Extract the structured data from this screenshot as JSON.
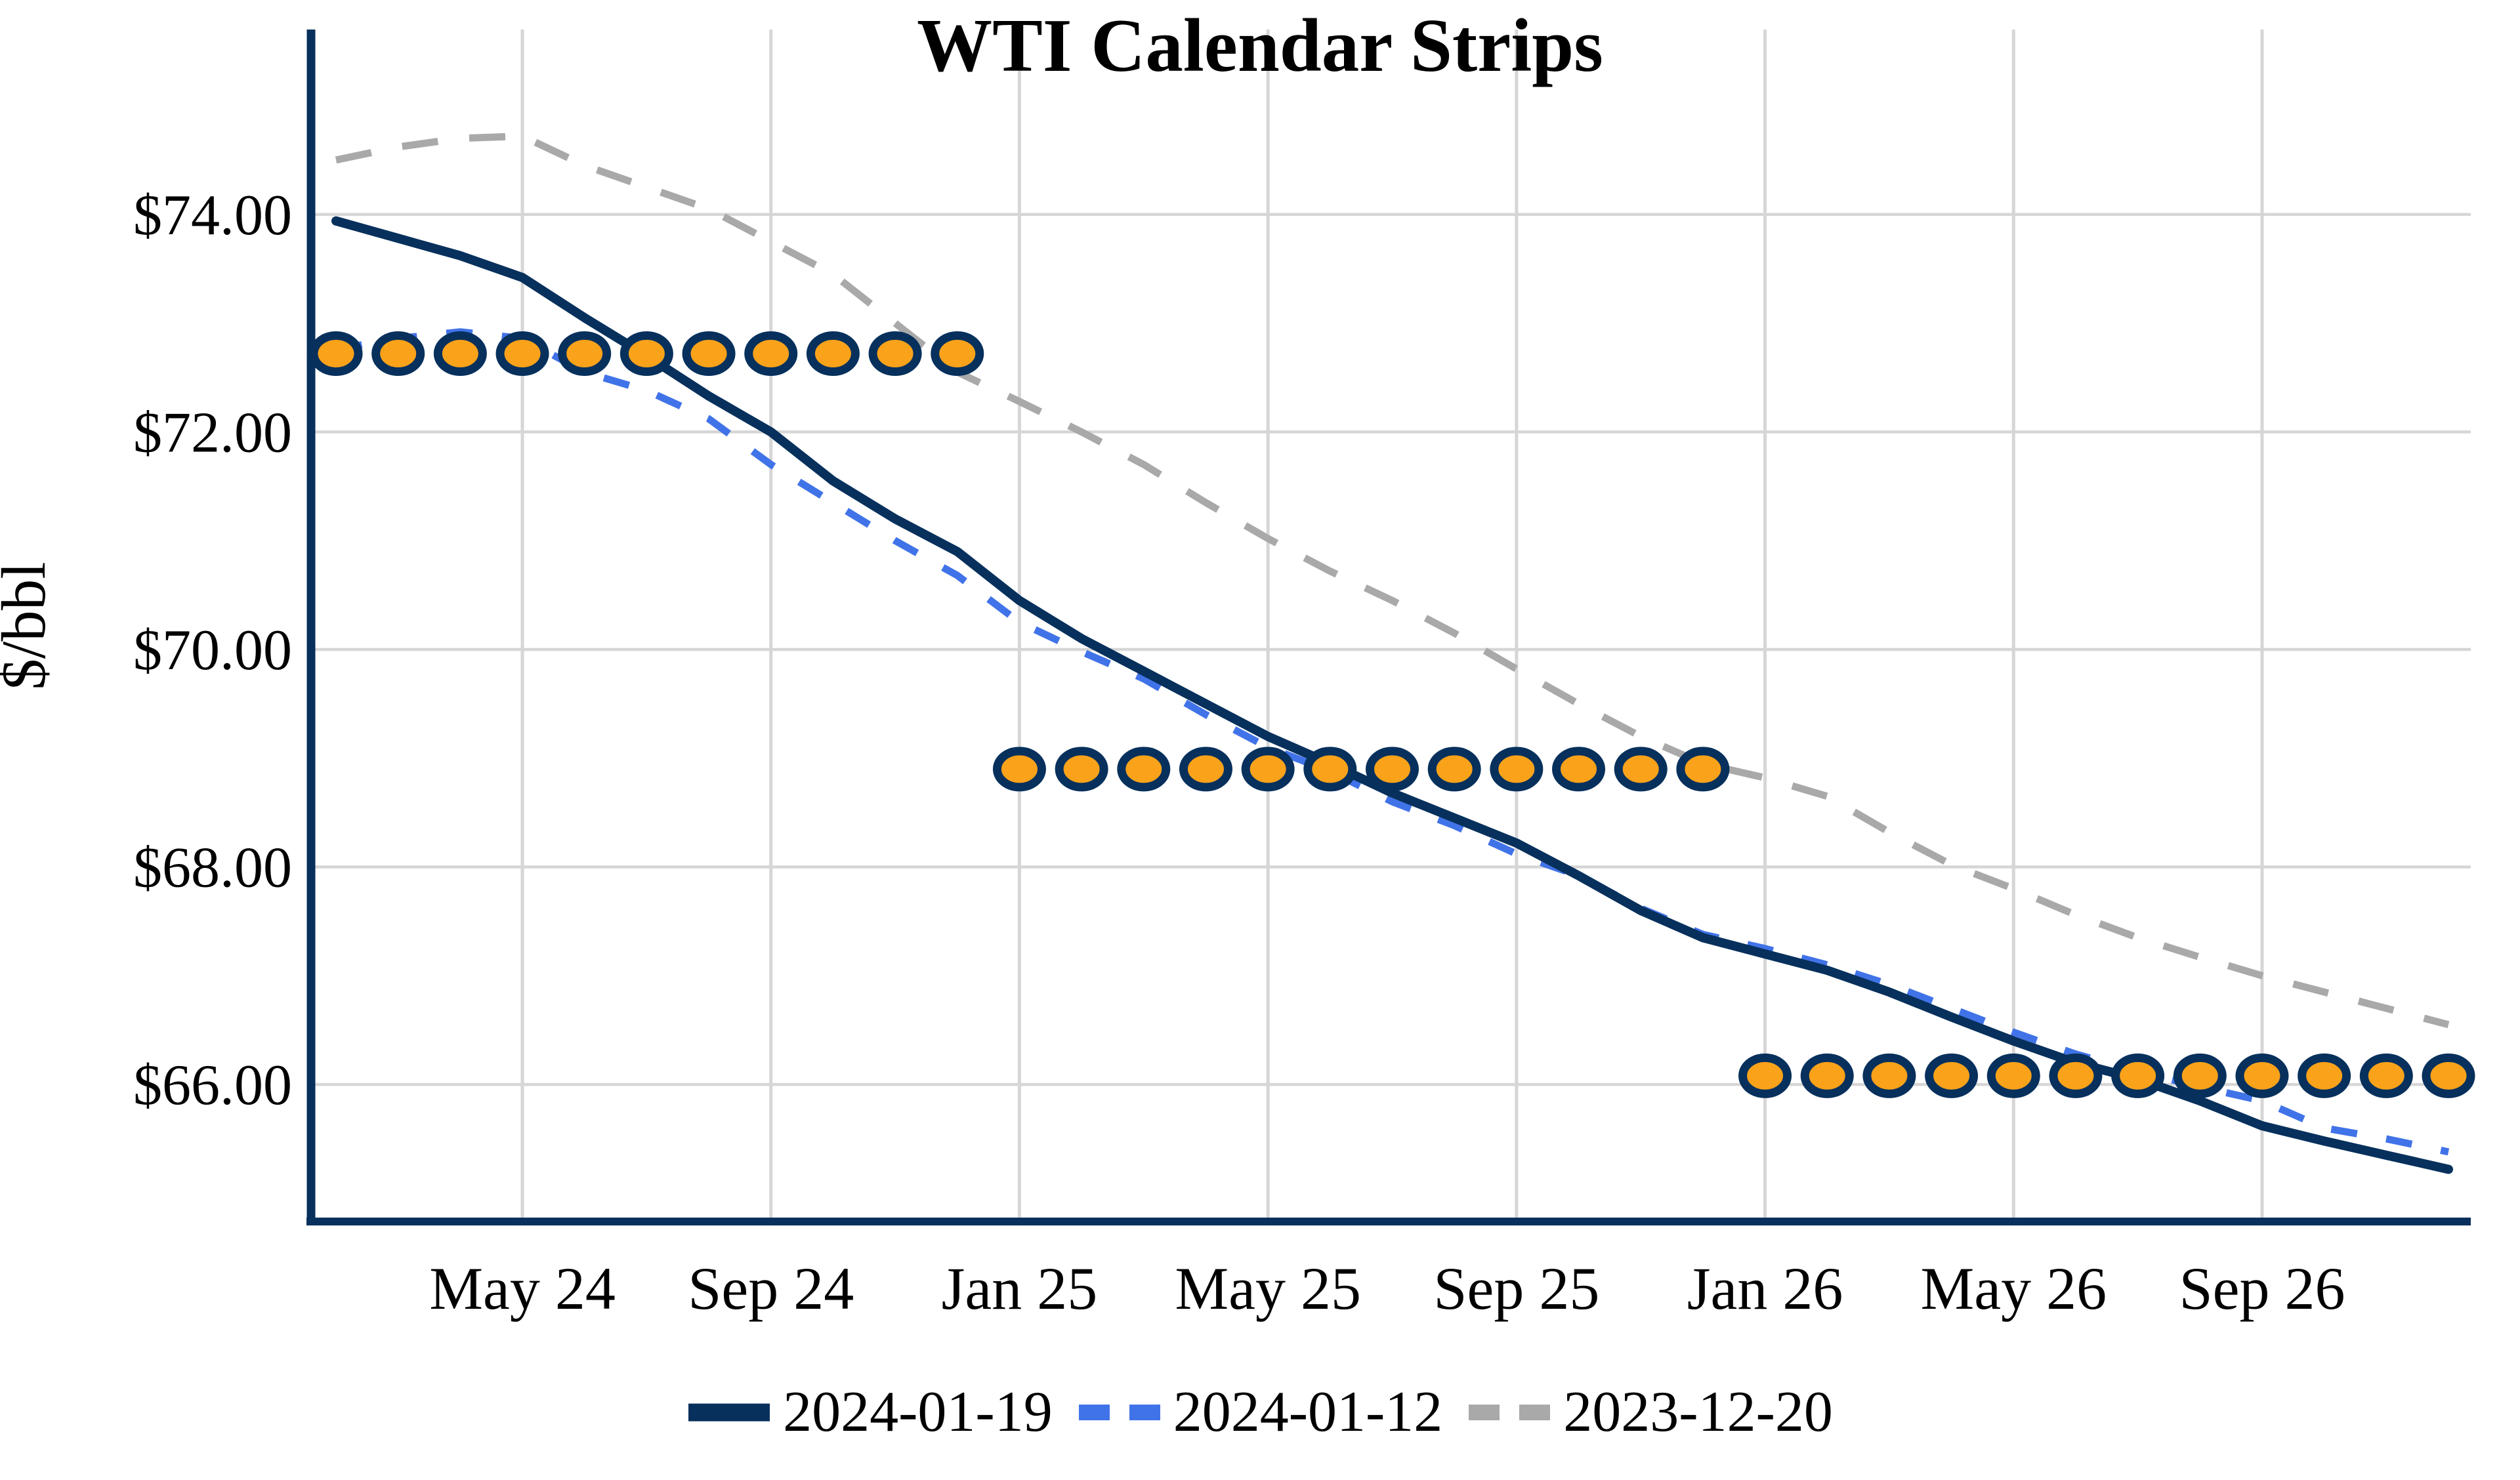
{
  "page": {
    "background": "#FFFFFF",
    "text_color": "#000000"
  },
  "chart_data": {
    "type": "line",
    "title": "WTI Calendar Strips",
    "ylabel": "$/bbl",
    "xlabel": "",
    "grid": true,
    "legend_position": "bottom",
    "ylim": [
      64.74,
      75.7
    ],
    "months": [
      "Feb 24",
      "Mar 24",
      "Apr 24",
      "May 24",
      "Jun 24",
      "Jul 24",
      "Aug 24",
      "Sep 24",
      "Oct 24",
      "Nov 24",
      "Dec 24",
      "Jan 25",
      "Feb 25",
      "Mar 25",
      "Apr 25",
      "May 25",
      "Jun 25",
      "Jul 25",
      "Aug 25",
      "Sep 25",
      "Oct 25",
      "Nov 25",
      "Dec 25",
      "Jan 26",
      "Feb 26",
      "Mar 26",
      "Apr 26",
      "May 26",
      "Jun 26",
      "Jul 26",
      "Aug 26",
      "Sep 26",
      "Oct 26",
      "Nov 26",
      "Dec 26"
    ],
    "x_ticks": [
      {
        "label": "May 24",
        "month_index": 3
      },
      {
        "label": "Sep 24",
        "month_index": 7
      },
      {
        "label": "Jan 25",
        "month_index": 11
      },
      {
        "label": "May 25",
        "month_index": 15
      },
      {
        "label": "Sep 25",
        "month_index": 19
      },
      {
        "label": "Jan 26",
        "month_index": 23
      },
      {
        "label": "May 26",
        "month_index": 27
      },
      {
        "label": "Sep 26",
        "month_index": 31
      }
    ],
    "y_ticks": [
      {
        "label": "$74.00",
        "value": 74
      },
      {
        "label": "$72.00",
        "value": 72
      },
      {
        "label": "$70.00",
        "value": 70
      },
      {
        "label": "$68.00",
        "value": 68
      },
      {
        "label": "$66.00",
        "value": 66
      }
    ],
    "series": [
      {
        "name": "2024-01-19",
        "style": "solid",
        "color": "#07305C",
        "width": 14,
        "values": [
          73.94,
          73.78,
          73.62,
          73.42,
          73.05,
          72.7,
          72.33,
          72.0,
          71.55,
          71.2,
          70.9,
          70.45,
          70.1,
          69.8,
          69.5,
          69.2,
          68.95,
          68.68,
          68.45,
          68.22,
          67.92,
          67.6,
          67.35,
          67.2,
          67.05,
          66.85,
          66.62,
          66.4,
          66.2,
          66.05,
          65.85,
          65.62,
          65.48,
          65.35,
          65.22
        ]
      },
      {
        "name": "2024-01-12",
        "style": "dashed",
        "color": "#4173E8",
        "width": 11,
        "dash": [
          40,
          45
        ],
        "values": [
          72.76,
          72.86,
          72.92,
          72.86,
          72.55,
          72.38,
          72.12,
          71.7,
          71.35,
          71.0,
          70.68,
          70.25,
          69.98,
          69.73,
          69.4,
          69.1,
          68.88,
          68.6,
          68.38,
          68.12,
          67.92,
          67.62,
          67.38,
          67.25,
          67.1,
          66.92,
          66.7,
          66.48,
          66.28,
          66.12,
          65.98,
          65.85,
          65.6,
          65.5,
          65.38
        ]
      },
      {
        "name": "2023-12-20",
        "style": "dashed",
        "color": "#A9A9A9",
        "width": 11,
        "dash": [
          55,
          48
        ],
        "values": [
          74.5,
          74.62,
          74.7,
          74.72,
          74.45,
          74.25,
          74.05,
          73.75,
          73.45,
          73.0,
          72.55,
          72.28,
          72.0,
          71.7,
          71.35,
          71.02,
          70.72,
          70.45,
          70.15,
          69.82,
          69.5,
          69.2,
          68.95,
          68.82,
          68.65,
          68.32,
          68.02,
          67.8,
          67.56,
          67.35,
          67.17,
          67.0,
          66.85,
          66.7,
          66.55
        ]
      }
    ],
    "dot_bands": [
      {
        "value": 72.72,
        "from_month_index": 0,
        "to_month_index": 10,
        "count": 11
      },
      {
        "value": 68.9,
        "from_month_index": 11,
        "to_month_index": 22,
        "count": 12
      },
      {
        "value": 66.08,
        "from_month_index": 23,
        "to_month_index": 34,
        "count": 12
      }
    ],
    "marker_style": {
      "fill": "#F9A21A",
      "stroke": "#07305C"
    },
    "colors": {
      "axis": "#07305C",
      "gridline": "#D6D6D6",
      "tick_text": "#000000"
    }
  }
}
